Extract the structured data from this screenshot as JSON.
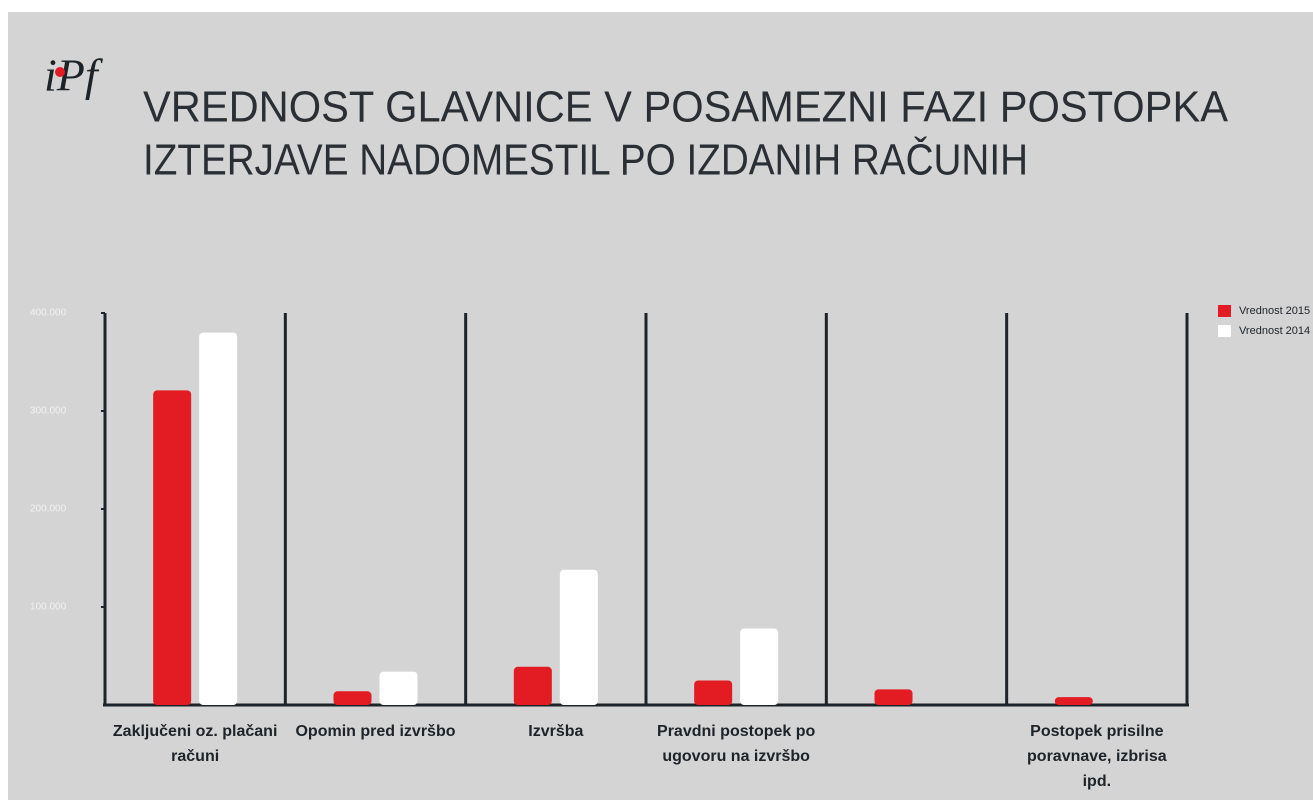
{
  "logo": "iPf",
  "chart_data": {
    "type": "bar",
    "title": [
      "VREDNOST GLAVNICE V POSAMEZNI FAZI POSTOPKA",
      "IZTERJAVE NADOMESTIL PO IZDANIH RAČUNIH"
    ],
    "categories": [
      "Zaključeni oz. plačani računi",
      "Opomin pred izvršbo",
      "Izvršba",
      "Pravdni postopek po ugovoru na izvršbo",
      null,
      "Postopek prisilne poravnave, izbrisa ipd."
    ],
    "series": [
      {
        "name": "Vrednost 2015",
        "color": "#e31b23",
        "values": [
          321000,
          14000,
          39000,
          25000,
          16000,
          8000
        ]
      },
      {
        "name": "Vrednost 2014",
        "color": "#ffffff",
        "values": [
          380000,
          34000,
          138000,
          78000,
          0,
          0
        ]
      }
    ],
    "ylim": [
      0,
      400000
    ],
    "yticks": [
      {
        "value": 100000,
        "label": "100.000"
      },
      {
        "value": 200000,
        "label": "200.000"
      },
      {
        "value": 300000,
        "label": "300.000"
      },
      {
        "value": 400000,
        "label": "400.000"
      }
    ],
    "legend": "top-right"
  }
}
